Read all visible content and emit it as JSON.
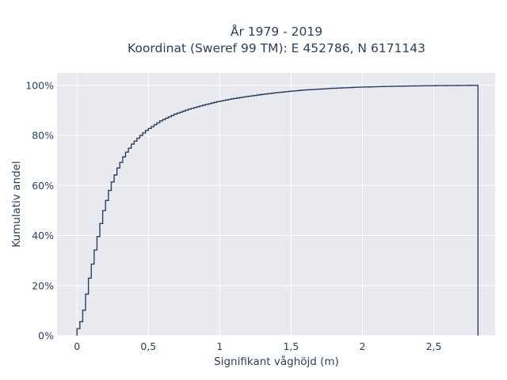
{
  "chart_data": {
    "type": "line",
    "subtype": "cumulative step (ECDF)",
    "title": "År 1979 - 2019",
    "subtitle": "Koordinat (Sweref 99 TM): E 452786, N 6171143",
    "xlabel": "Signifikant våghöjd (m)",
    "ylabel": "Kumulativ andel",
    "xlim": [
      -0.14,
      2.93
    ],
    "ylim": [
      0,
      1.05
    ],
    "x_ticks": [
      0,
      0.5,
      1,
      1.5,
      2,
      2.5
    ],
    "x_tick_labels": [
      "0",
      "0,5",
      "1",
      "1,5",
      "2",
      "2,5"
    ],
    "y_ticks": [
      0,
      0.2,
      0.4,
      0.6,
      0.8,
      1.0
    ],
    "y_tick_labels": [
      "0%",
      "20%",
      "40%",
      "60%",
      "80%",
      "100%"
    ],
    "grid": true,
    "background": "#e8eaf0",
    "line_color": "#2a3f5f",
    "step_width": 0.02,
    "x_max": 2.81,
    "series": [
      {
        "x": [
          0,
          0.05,
          0.1,
          0.15,
          0.2,
          0.25,
          0.3,
          0.35,
          0.4,
          0.45,
          0.5,
          0.6,
          0.7,
          0.8,
          0.9,
          1.0,
          1.1,
          1.2,
          1.3,
          1.4,
          1.5,
          1.6,
          1.8,
          2.0,
          2.2,
          2.4,
          2.6,
          2.81
        ],
        "y": [
          0.0,
          0.07,
          0.23,
          0.37,
          0.5,
          0.6,
          0.67,
          0.725,
          0.765,
          0.795,
          0.82,
          0.858,
          0.885,
          0.905,
          0.921,
          0.935,
          0.946,
          0.955,
          0.963,
          0.97,
          0.976,
          0.981,
          0.988,
          0.993,
          0.996,
          0.998,
          0.999,
          1.0
        ]
      }
    ]
  }
}
